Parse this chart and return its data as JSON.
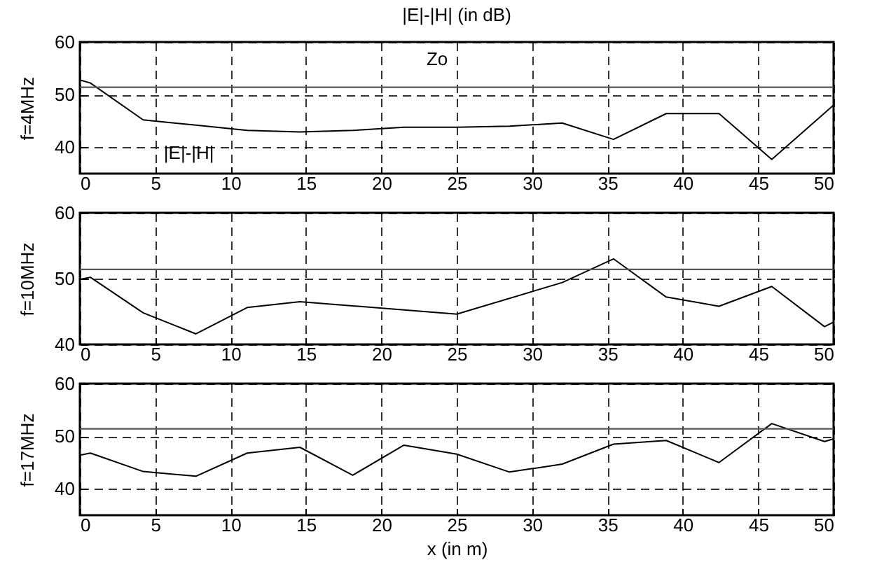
{
  "chart_data": [
    {
      "type": "line",
      "title": "|E|-|H|  (in dB)",
      "ylabel": "f=4MHz",
      "x": [
        0,
        0.7,
        4.2,
        7.7,
        11.1,
        14.6,
        18.1,
        21.5,
        25,
        28.5,
        32,
        35.4,
        38.9,
        42.4,
        45.9,
        50
      ],
      "series": [
        {
          "color": "#000000",
          "values": [
            52.8,
            52.2,
            45.2,
            44.2,
            43.2,
            42.9,
            43.2,
            43.8,
            43.8,
            44.0,
            44.6,
            41.5,
            46.4,
            46.4,
            37.7,
            48.0
          ]
        }
      ],
      "xlim": [
        0,
        50
      ],
      "xticks": [
        0,
        5,
        10,
        15,
        20,
        25,
        30,
        35,
        40,
        45,
        50
      ],
      "ylim": [
        35,
        60
      ],
      "yticks": [
        40,
        50,
        60
      ],
      "grid": true,
      "ref_lines": [
        {
          "axis": "y",
          "value": 51.4,
          "label": "Zo",
          "color": "#555555"
        }
      ],
      "annotations": [
        {
          "text": "|E|-|H|",
          "x": 7.7,
          "y": 44.2
        }
      ]
    },
    {
      "type": "line",
      "ylabel": "f=10MHz",
      "x": [
        0,
        0.7,
        4.2,
        7.7,
        11.1,
        14.6,
        25,
        32,
        35.4,
        38.9,
        42.4,
        45.9,
        49.4,
        50
      ],
      "series": [
        {
          "color": "#000000",
          "values": [
            49.9,
            50.2,
            44.8,
            41.6,
            45.6,
            46.5,
            44.6,
            49.4,
            53.0,
            47.2,
            45.8,
            48.8,
            42.7,
            43.4
          ]
        }
      ],
      "xlim": [
        0,
        50
      ],
      "xticks": [
        0,
        5,
        10,
        15,
        20,
        25,
        30,
        35,
        40,
        45,
        50
      ],
      "ylim": [
        40,
        60
      ],
      "yticks": [
        40,
        50,
        60
      ],
      "grid": true,
      "ref_lines": [
        {
          "axis": "y",
          "value": 51.4,
          "color": "#555555"
        }
      ]
    },
    {
      "type": "line",
      "ylabel": "f=17MHz",
      "xlabel": "x (in m)",
      "x": [
        0,
        0.7,
        4.2,
        7.7,
        11.1,
        14.6,
        18.1,
        21.5,
        25,
        28.5,
        32,
        35.4,
        38.9,
        42.4,
        45.9,
        49.4,
        50
      ],
      "series": [
        {
          "color": "#000000",
          "values": [
            46.4,
            46.8,
            43.3,
            42.4,
            46.8,
            47.9,
            42.6,
            48.3,
            46.6,
            43.2,
            44.7,
            48.5,
            49.2,
            45.0,
            52.4,
            49.0,
            49.5
          ]
        }
      ],
      "xlim": [
        0,
        50
      ],
      "xticks": [
        0,
        5,
        10,
        15,
        20,
        25,
        30,
        35,
        40,
        45,
        50
      ],
      "ylim": [
        35,
        60
      ],
      "yticks": [
        40,
        50,
        60
      ],
      "grid": true,
      "ref_lines": [
        {
          "axis": "y",
          "value": 51.4,
          "color": "#555555"
        }
      ]
    }
  ]
}
